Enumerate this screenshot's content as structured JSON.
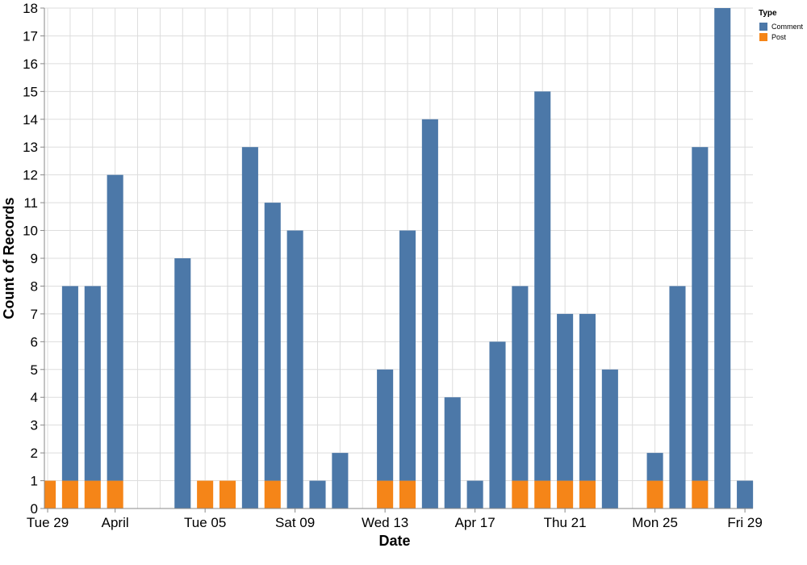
{
  "chart_data": {
    "type": "bar",
    "stacked": true,
    "xlabel": "Date",
    "ylabel": "Count of Records",
    "ylim": [
      0,
      18
    ],
    "yticks": [
      0,
      1,
      2,
      3,
      4,
      5,
      6,
      7,
      8,
      9,
      10,
      11,
      12,
      13,
      14,
      15,
      16,
      17,
      18
    ],
    "grid": true,
    "legend": {
      "title": "Type",
      "placement": "top-right",
      "entries": [
        {
          "name": "Comment",
          "color": "#4c78a8"
        },
        {
          "name": "Post",
          "color": "#f58518"
        }
      ]
    },
    "x": [
      "2024-03-29",
      "2024-03-30",
      "2024-03-31",
      "2024-04-01",
      "2024-04-02",
      "2024-04-03",
      "2024-04-04",
      "2024-04-05",
      "2024-04-06",
      "2024-04-07",
      "2024-04-08",
      "2024-04-09",
      "2024-04-10",
      "2024-04-11",
      "2024-04-12",
      "2024-04-13",
      "2024-04-14",
      "2024-04-15",
      "2024-04-16",
      "2024-04-17",
      "2024-04-18",
      "2024-04-19",
      "2024-04-20",
      "2024-04-21",
      "2024-04-22",
      "2024-04-23",
      "2024-04-24",
      "2024-04-25",
      "2024-04-26",
      "2024-04-27",
      "2024-04-28",
      "2024-04-29"
    ],
    "xticks": [
      {
        "date": "2024-03-29",
        "label": "Tue 29"
      },
      {
        "date": "2024-04-01",
        "label": "April"
      },
      {
        "date": "2024-04-05",
        "label": "Tue 05"
      },
      {
        "date": "2024-04-09",
        "label": "Sat 09"
      },
      {
        "date": "2024-04-13",
        "label": "Wed 13"
      },
      {
        "date": "2024-04-17",
        "label": "Apr 17"
      },
      {
        "date": "2024-04-21",
        "label": "Thu 21"
      },
      {
        "date": "2024-04-25",
        "label": "Mon 25"
      },
      {
        "date": "2024-04-29",
        "label": "Fri 29"
      }
    ],
    "series": [
      {
        "name": "Post",
        "color": "#f58518",
        "values": [
          1,
          1,
          1,
          1,
          0,
          0,
          0,
          1,
          1,
          0,
          1,
          0,
          0,
          0,
          0,
          1,
          1,
          0,
          0,
          0,
          0,
          1,
          1,
          1,
          1,
          0,
          0,
          1,
          0,
          1,
          0,
          0
        ]
      },
      {
        "name": "Comment",
        "color": "#4c78a8",
        "values": [
          0,
          7,
          7,
          11,
          0,
          0,
          9,
          0,
          0,
          13,
          10,
          10,
          1,
          2,
          0,
          4,
          9,
          14,
          4,
          1,
          6,
          7,
          14,
          6,
          6,
          5,
          0,
          1,
          8,
          12,
          18,
          1
        ]
      }
    ]
  }
}
